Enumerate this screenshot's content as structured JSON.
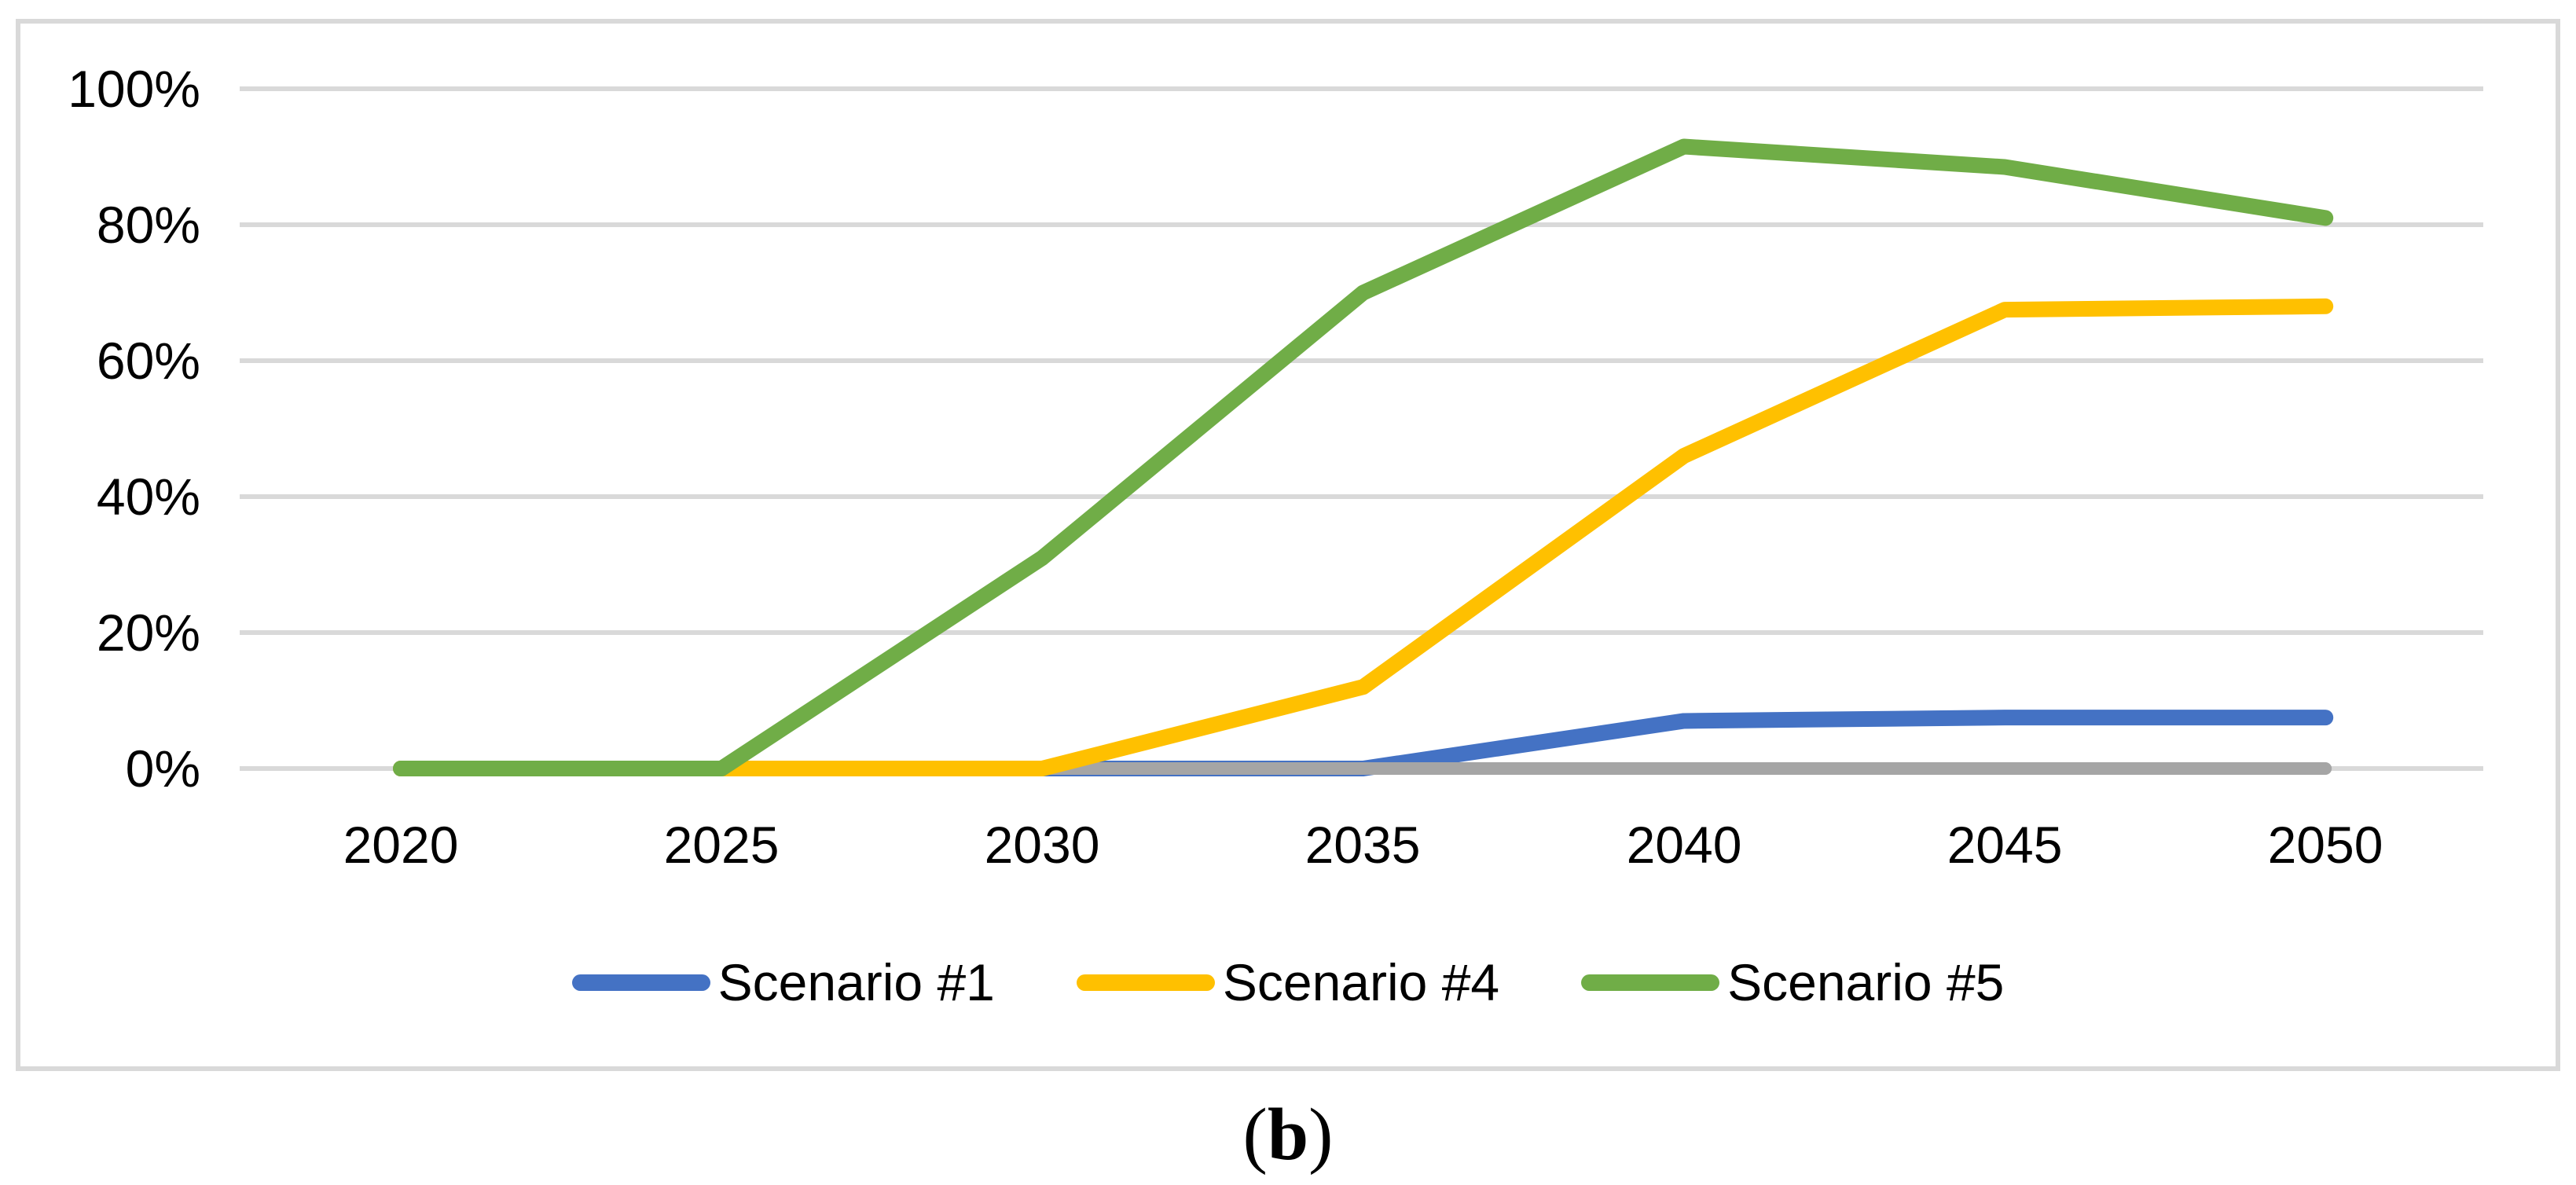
{
  "figure": {
    "caption": {
      "open": "(",
      "letter": "b",
      "close": ")"
    }
  },
  "chart_data": {
    "type": "line",
    "title": "",
    "categories": [
      "2020",
      "2025",
      "2030",
      "2035",
      "2040",
      "2045",
      "2050"
    ],
    "yticks": [
      "0%",
      "20%",
      "40%",
      "60%",
      "80%",
      "100%"
    ],
    "ylim": [
      0,
      100
    ],
    "grid": "horizontal",
    "gridline_color": "#D9D9D9",
    "frame_color": "#D9D9D9",
    "text_color": "#000000",
    "legend_position": "bottom-center",
    "series": [
      {
        "name": "Scenario #1",
        "color": "#4472C4",
        "in_legend": true,
        "values": [
          0,
          0,
          0,
          0,
          7,
          7.5,
          7.5
        ]
      },
      {
        "name": "",
        "color": "#A5A5A5",
        "in_legend": false,
        "values": [
          0,
          0,
          0,
          0,
          0,
          0,
          0
        ]
      },
      {
        "name": "Scenario #4",
        "color": "#FFC000",
        "in_legend": true,
        "values": [
          0,
          0,
          0,
          12,
          46,
          67.5,
          68
        ]
      },
      {
        "name": "Scenario #5",
        "color": "#70AD47",
        "in_legend": true,
        "values": [
          0,
          0,
          31,
          70,
          91.5,
          88.5,
          81
        ]
      }
    ]
  }
}
